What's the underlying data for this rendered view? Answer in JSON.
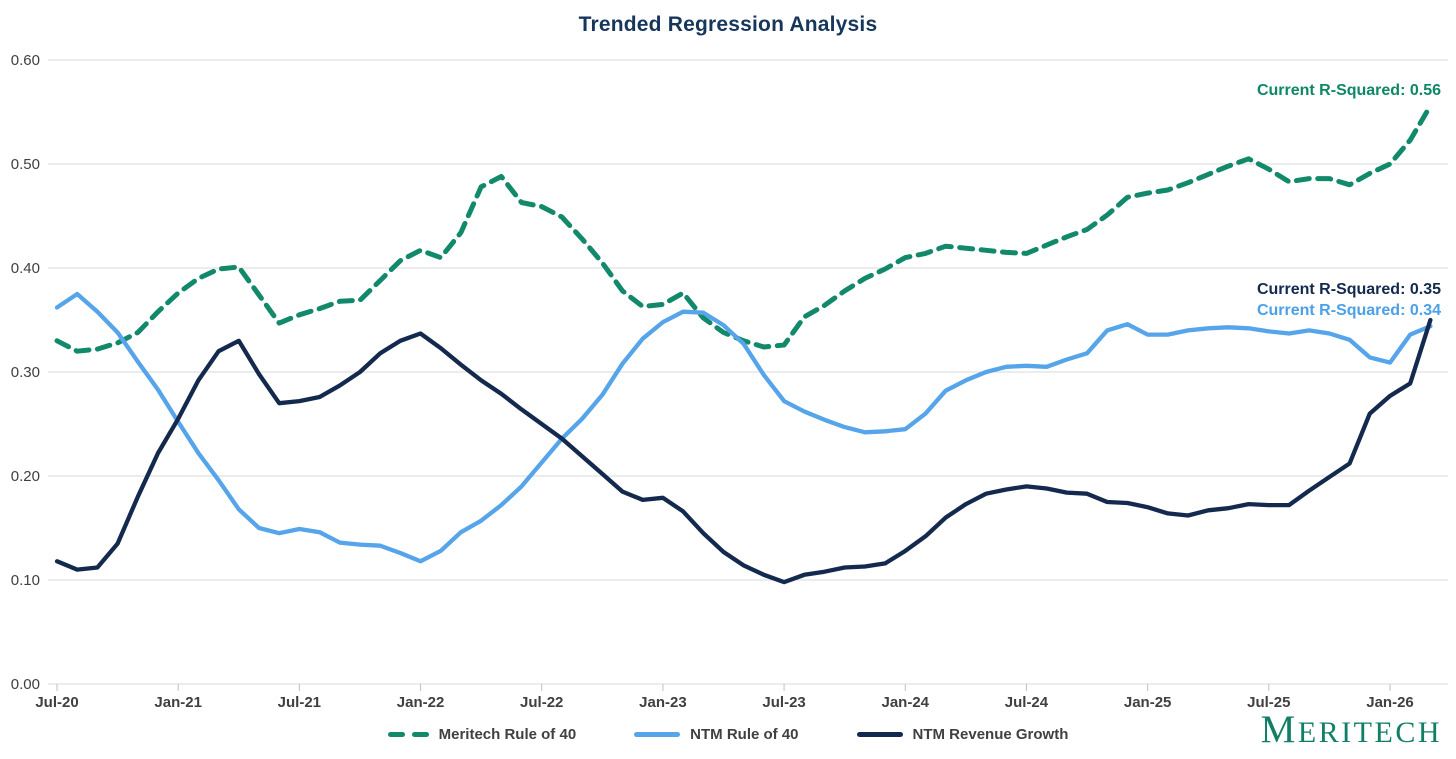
{
  "title": "Trended Regression Analysis",
  "annotations": {
    "meritech": {
      "label": "Current R-Squared: 0.56",
      "color": "#0E8767"
    },
    "revenue_growth": {
      "label": "Current R-Squared: 0.35",
      "color": "#14294E"
    },
    "ntm_rule_of_40": {
      "label": "Current R-Squared: 0.34",
      "color": "#4BA0E8"
    }
  },
  "legend": {
    "items": [
      {
        "label": "Meritech Rule of 40"
      },
      {
        "label": "NTM Rule of 40"
      },
      {
        "label": "NTM Revenue Growth"
      }
    ]
  },
  "logo": {
    "initial": "M",
    "rest": "ERITECH"
  },
  "colors": {
    "green": "#12896A",
    "blue": "#56A4E9",
    "navy": "#14294E",
    "title": "#17365C",
    "gridline": "#D9D9D9",
    "tick": "#BFBFBF",
    "axis_text": "#404040"
  },
  "chart_data": {
    "type": "line",
    "title": "Trended Regression Analysis",
    "x_tick_labels": [
      "Jul-20",
      "Jan-21",
      "Jul-21",
      "Jan-22",
      "Jul-22",
      "Jan-23",
      "Jul-23",
      "Jan-24",
      "Jul-24",
      "Jan-25",
      "Jul-25",
      "Jan-26"
    ],
    "y_tick_labels": [
      "0.00",
      "0.10",
      "0.20",
      "0.30",
      "0.40",
      "0.50",
      "0.60"
    ],
    "ylim": [
      0.0,
      0.6
    ],
    "grid": "horizontal",
    "legend_position": "bottom-center",
    "x_start": "Jul-20",
    "x_end": "Mar-26",
    "x_interval": "monthly",
    "series": [
      {
        "name": "Meritech Rule of 40",
        "color": "#12896A",
        "style": "dashed",
        "current_r_squared": 0.56,
        "values": [
          0.33,
          0.32,
          0.322,
          0.328,
          0.338,
          0.358,
          0.376,
          0.39,
          0.399,
          0.401,
          0.374,
          0.347,
          0.355,
          0.361,
          0.368,
          0.369,
          0.388,
          0.407,
          0.417,
          0.41,
          0.434,
          0.478,
          0.488,
          0.463,
          0.459,
          0.449,
          0.428,
          0.405,
          0.378,
          0.363,
          0.365,
          0.376,
          0.352,
          0.338,
          0.33,
          0.324,
          0.326,
          0.353,
          0.364,
          0.378,
          0.39,
          0.399,
          0.41,
          0.414,
          0.421,
          0.419,
          0.417,
          0.415,
          0.414,
          0.422,
          0.43,
          0.437,
          0.451,
          0.468,
          0.472,
          0.475,
          0.482,
          0.49,
          0.498,
          0.505,
          0.495,
          0.483,
          0.486,
          0.486,
          0.48,
          0.491,
          0.5,
          0.523,
          0.556
        ]
      },
      {
        "name": "NTM Rule of 40",
        "color": "#56A4E9",
        "style": "solid",
        "current_r_squared": 0.34,
        "values": [
          0.362,
          0.375,
          0.358,
          0.338,
          0.31,
          0.283,
          0.252,
          0.222,
          0.196,
          0.168,
          0.15,
          0.145,
          0.149,
          0.146,
          0.136,
          0.134,
          0.133,
          0.126,
          0.118,
          0.128,
          0.146,
          0.157,
          0.172,
          0.19,
          0.213,
          0.236,
          0.255,
          0.278,
          0.308,
          0.332,
          0.348,
          0.358,
          0.357,
          0.345,
          0.327,
          0.297,
          0.272,
          0.262,
          0.254,
          0.247,
          0.242,
          0.243,
          0.245,
          0.26,
          0.282,
          0.292,
          0.3,
          0.305,
          0.306,
          0.305,
          0.312,
          0.318,
          0.34,
          0.346,
          0.336,
          0.336,
          0.34,
          0.342,
          0.343,
          0.342,
          0.339,
          0.337,
          0.34,
          0.337,
          0.331,
          0.314,
          0.309,
          0.336,
          0.344
        ]
      },
      {
        "name": "NTM Revenue Growth",
        "color": "#14294E",
        "style": "solid",
        "current_r_squared": 0.35,
        "values": [
          0.118,
          0.11,
          0.112,
          0.135,
          0.18,
          0.222,
          0.255,
          0.292,
          0.32,
          0.33,
          0.298,
          0.27,
          0.272,
          0.276,
          0.287,
          0.3,
          0.318,
          0.33,
          0.337,
          0.323,
          0.307,
          0.292,
          0.279,
          0.264,
          0.25,
          0.236,
          0.219,
          0.202,
          0.185,
          0.177,
          0.179,
          0.166,
          0.145,
          0.127,
          0.114,
          0.105,
          0.098,
          0.105,
          0.108,
          0.112,
          0.113,
          0.116,
          0.128,
          0.142,
          0.16,
          0.173,
          0.183,
          0.187,
          0.19,
          0.188,
          0.184,
          0.183,
          0.175,
          0.174,
          0.17,
          0.164,
          0.162,
          0.167,
          0.169,
          0.173,
          0.172,
          0.172,
          0.186,
          0.199,
          0.212,
          0.26,
          0.277,
          0.289,
          0.35
        ]
      }
    ]
  }
}
